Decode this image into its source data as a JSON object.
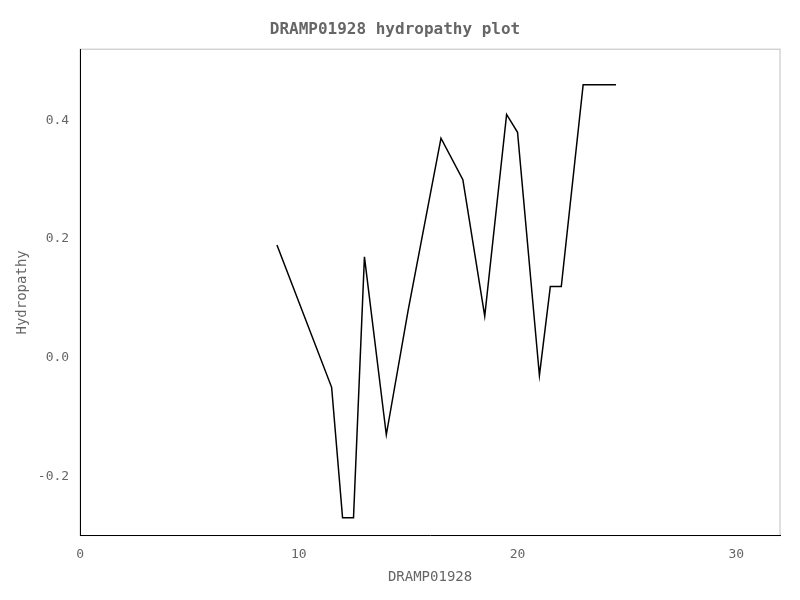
{
  "chart_data": {
    "type": "line",
    "title": "DRAMP01928 hydropathy plot",
    "xlabel": "DRAMP01928",
    "ylabel": "Hydropathy",
    "x": [
      9,
      11.5,
      12.0,
      12.1,
      12.5,
      13.0,
      14.0,
      15.0,
      16.5,
      17.5,
      18.5,
      19.5,
      20.0,
      21.0,
      21.5,
      22.0,
      23.0,
      24.5
    ],
    "values": [
      0.19,
      -0.05,
      -0.27,
      -0.27,
      -0.27,
      0.17,
      -0.13,
      0.08,
      0.37,
      0.3,
      0.07,
      0.41,
      0.38,
      -0.03,
      0.12,
      0.12,
      0.46,
      0.46
    ],
    "color": "#000000",
    "xlim": [
      0,
      32
    ],
    "xticks": [
      0,
      10,
      20,
      30
    ],
    "ylim": [
      -0.3,
      0.52
    ],
    "yticks": [
      -0.2,
      {
        "value": 0,
        "label": "0.0"
      },
      0.2,
      0.4
    ],
    "grid": false
  }
}
